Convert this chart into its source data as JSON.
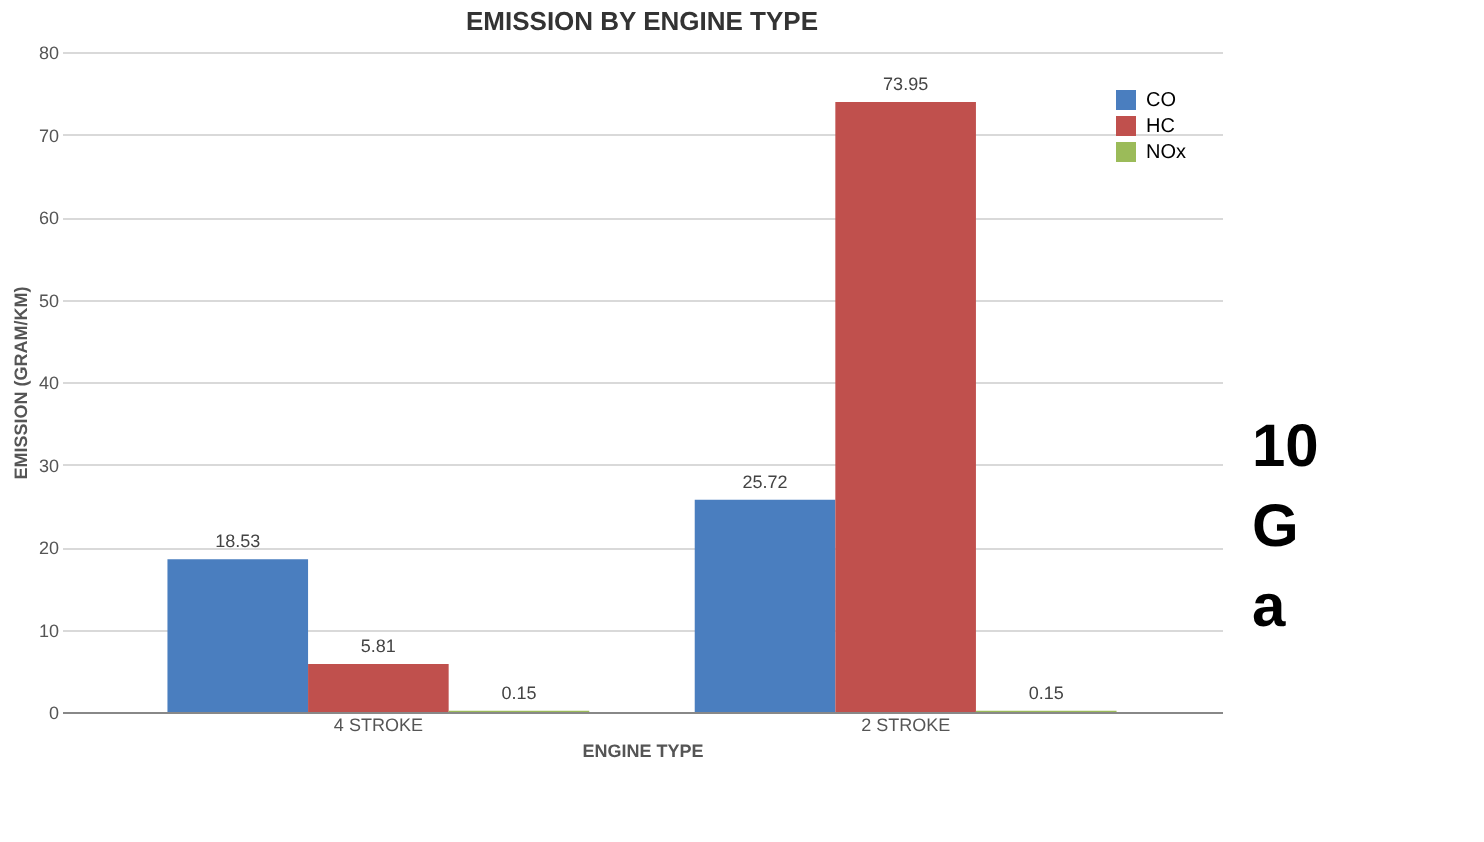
{
  "chart_data": {
    "type": "bar",
    "title": "EMISSION BY ENGINE TYPE",
    "xlabel": "ENGINE TYPE",
    "ylabel": "EMISSION (GRAM/KM)",
    "categories": [
      "4 STROKE",
      "2 STROKE"
    ],
    "series": [
      {
        "name": "CO",
        "color": "#4a7ebf",
        "values": [
          18.53,
          25.72
        ]
      },
      {
        "name": "HC",
        "color": "#c0504d",
        "values": [
          5.81,
          73.95
        ]
      },
      {
        "name": "NOx",
        "color": "#9bbb59",
        "values": [
          0.15,
          0.15
        ]
      }
    ],
    "ylim": [
      0,
      80
    ],
    "yticks": [
      0,
      10,
      20,
      30,
      40,
      50,
      60,
      70,
      80
    ],
    "grid": "y",
    "legend": "top right",
    "data_labels": true,
    "annotations": [
      "10",
      "G",
      "a"
    ]
  }
}
